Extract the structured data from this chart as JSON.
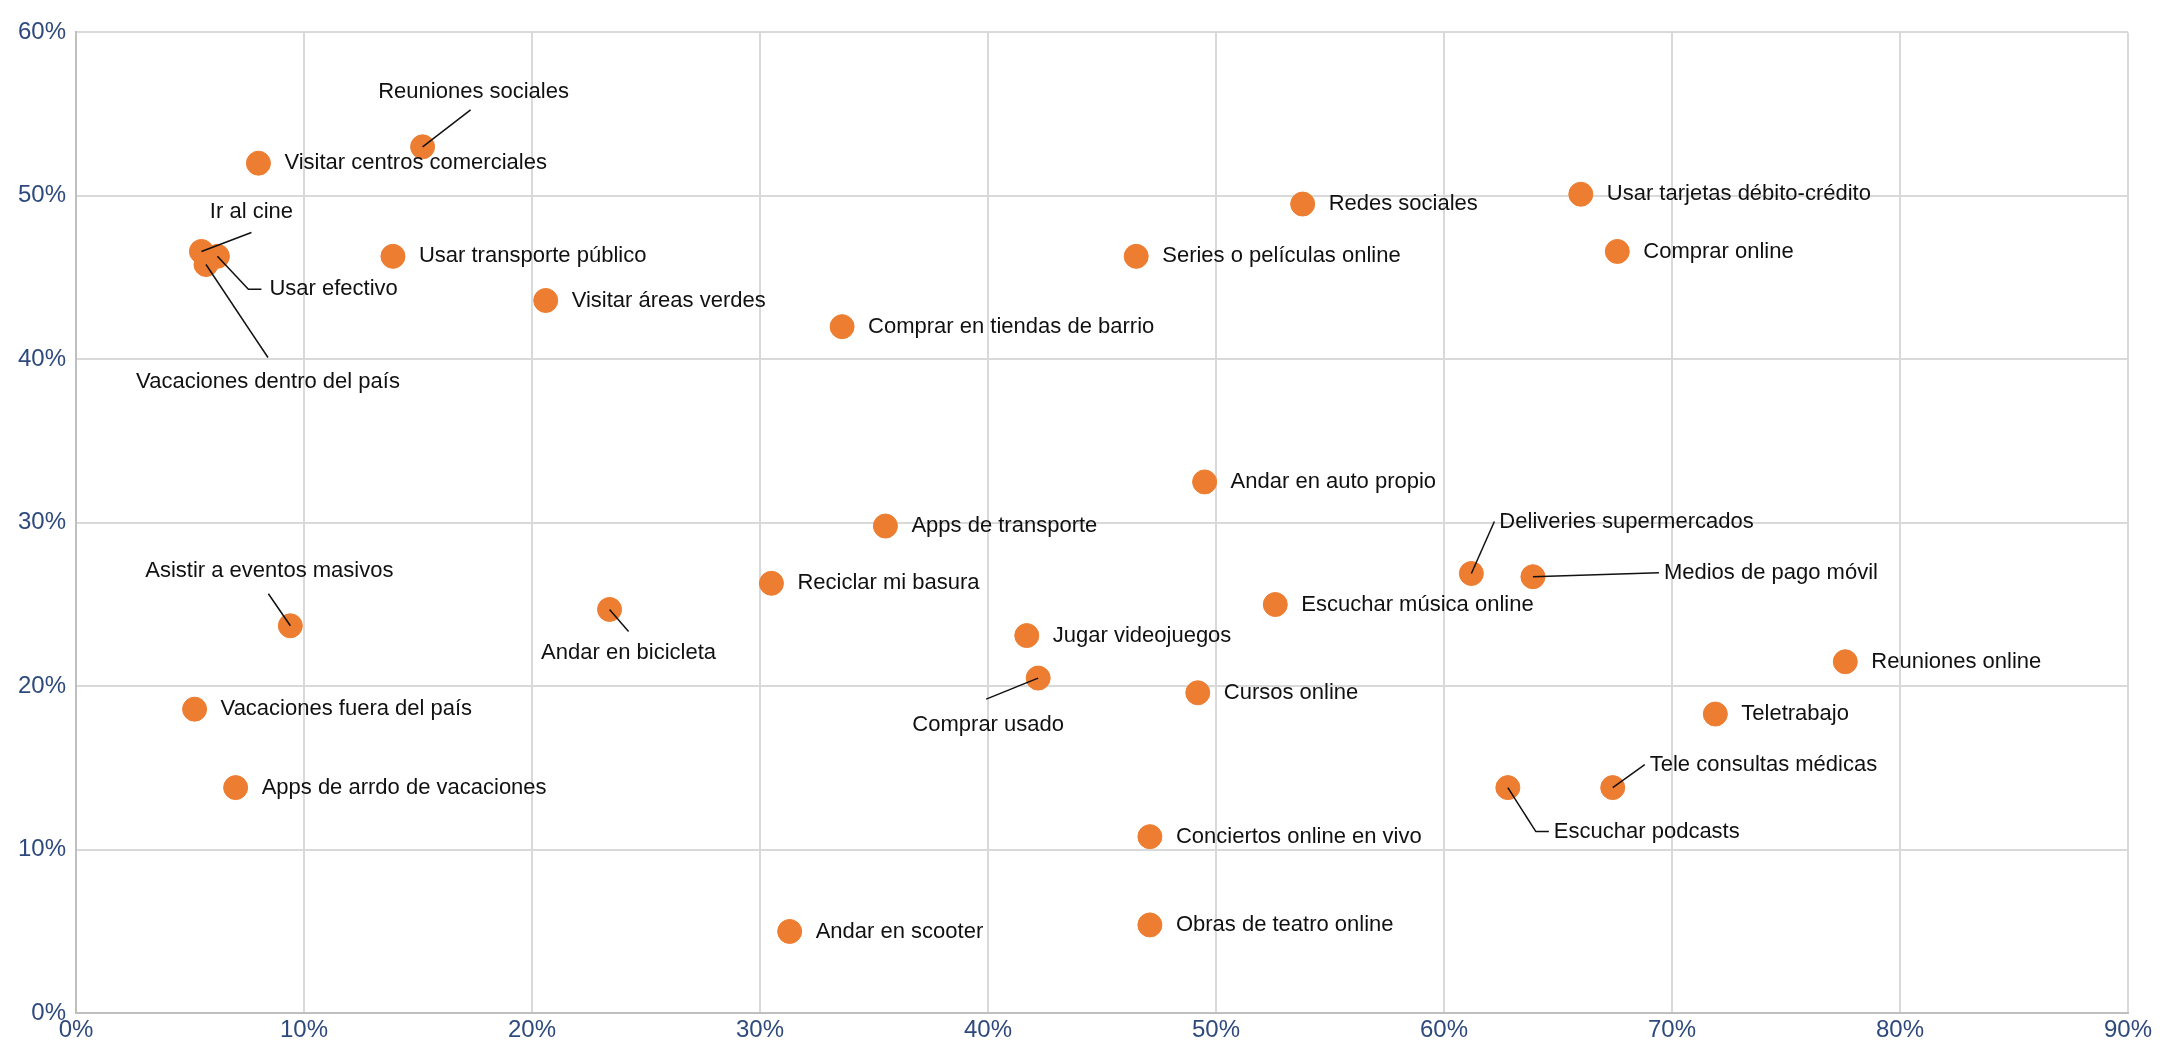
{
  "chart_data": {
    "type": "scatter",
    "color": "#ed7d31",
    "marker": "circle",
    "grid": true,
    "x": [
      15.2,
      8.0,
      5.5,
      6.2,
      5.7,
      13.9,
      20.6,
      33.6,
      46.5,
      53.8,
      66.0,
      67.6,
      49.5,
      35.5,
      30.5,
      61.2,
      63.9,
      52.6,
      9.4,
      23.4,
      41.7,
      42.2,
      49.2,
      77.6,
      71.9,
      5.2,
      7.0,
      62.8,
      67.4,
      47.1,
      31.3,
      47.1
    ],
    "values": [
      53.0,
      52.0,
      46.6,
      46.3,
      45.8,
      46.3,
      43.6,
      42.0,
      46.3,
      49.5,
      50.1,
      46.6,
      32.5,
      29.8,
      26.3,
      26.9,
      26.7,
      25.0,
      23.7,
      24.7,
      23.1,
      20.5,
      19.6,
      21.5,
      18.3,
      18.6,
      13.8,
      13.8,
      13.8,
      10.8,
      5.0,
      5.4
    ],
    "xlim": [
      0,
      90
    ],
    "xticks": [
      {
        "value": 0,
        "label": "0%"
      },
      {
        "value": 10,
        "label": "10%"
      },
      {
        "value": 20,
        "label": "20%"
      },
      {
        "value": 30,
        "label": "30%"
      },
      {
        "value": 40,
        "label": "40%"
      },
      {
        "value": 50,
        "label": "50%"
      },
      {
        "value": 60,
        "label": "60%"
      },
      {
        "value": 70,
        "label": "70%"
      },
      {
        "value": 80,
        "label": "80%"
      },
      {
        "value": 90,
        "label": "90%"
      }
    ],
    "ylim": [
      0,
      60
    ],
    "yticks": [
      {
        "value": 0,
        "label": "0%"
      },
      {
        "value": 10,
        "label": "10%"
      },
      {
        "value": 20,
        "label": "20%"
      },
      {
        "value": 30,
        "label": "30%"
      },
      {
        "value": 40,
        "label": "40%"
      },
      {
        "value": 50,
        "label": "50%"
      },
      {
        "value": 60,
        "label": "60%"
      }
    ],
    "annotations": [
      {
        "text": "Reuniones sociales",
        "x": 15.2,
        "y": 53.0
      },
      {
        "text": "Visitar centros comerciales",
        "x": 8.0,
        "y": 52.0
      },
      {
        "text": "Ir al cine",
        "x": 5.5,
        "y": 46.6
      },
      {
        "text": "Usar efectivo",
        "x": 6.2,
        "y": 46.3
      },
      {
        "text": "Vacaciones dentro del país",
        "x": 5.7,
        "y": 45.8
      },
      {
        "text": "Usar transporte público",
        "x": 13.9,
        "y": 46.3
      },
      {
        "text": "Visitar áreas verdes",
        "x": 20.6,
        "y": 43.6
      },
      {
        "text": "Comprar en tiendas de barrio",
        "x": 33.6,
        "y": 42.0
      },
      {
        "text": "Series o películas online",
        "x": 46.5,
        "y": 46.3
      },
      {
        "text": "Redes sociales",
        "x": 53.8,
        "y": 49.5
      },
      {
        "text": "Usar tarjetas débito-crédito",
        "x": 66.0,
        "y": 50.1
      },
      {
        "text": "Comprar online",
        "x": 67.6,
        "y": 46.6
      },
      {
        "text": "Andar en auto propio",
        "x": 49.5,
        "y": 32.5
      },
      {
        "text": "Apps de transporte",
        "x": 35.5,
        "y": 29.8
      },
      {
        "text": "Reciclar mi basura",
        "x": 30.5,
        "y": 26.3
      },
      {
        "text": "Deliveries supermercados",
        "x": 61.2,
        "y": 26.9
      },
      {
        "text": "Medios de pago móvil",
        "x": 63.9,
        "y": 26.7
      },
      {
        "text": "Escuchar música online",
        "x": 52.6,
        "y": 25.0
      },
      {
        "text": "Asistir a eventos masivos",
        "x": 9.4,
        "y": 23.7
      },
      {
        "text": "Andar en bicicleta",
        "x": 23.4,
        "y": 24.7
      },
      {
        "text": "Jugar videojuegos",
        "x": 41.7,
        "y": 23.1
      },
      {
        "text": "Comprar usado",
        "x": 42.2,
        "y": 20.5
      },
      {
        "text": "Cursos online",
        "x": 49.2,
        "y": 19.6
      },
      {
        "text": "Reuniones online",
        "x": 77.6,
        "y": 21.5
      },
      {
        "text": "Teletrabajo",
        "x": 71.9,
        "y": 18.3
      },
      {
        "text": "Vacaciones fuera del país",
        "x": 5.2,
        "y": 18.6
      },
      {
        "text": "Apps de arrdo de vacaciones",
        "x": 7.0,
        "y": 13.8
      },
      {
        "text": "Escuchar podcasts",
        "x": 62.8,
        "y": 13.8
      },
      {
        "text": "Tele consultas médicas",
        "x": 67.4,
        "y": 13.8
      },
      {
        "text": "Conciertos online en vivo",
        "x": 47.1,
        "y": 10.8
      },
      {
        "text": "Andar en scooter",
        "x": 31.3,
        "y": 5.0
      },
      {
        "text": "Obras de teatro online",
        "x": 47.1,
        "y": 5.4
      }
    ]
  }
}
